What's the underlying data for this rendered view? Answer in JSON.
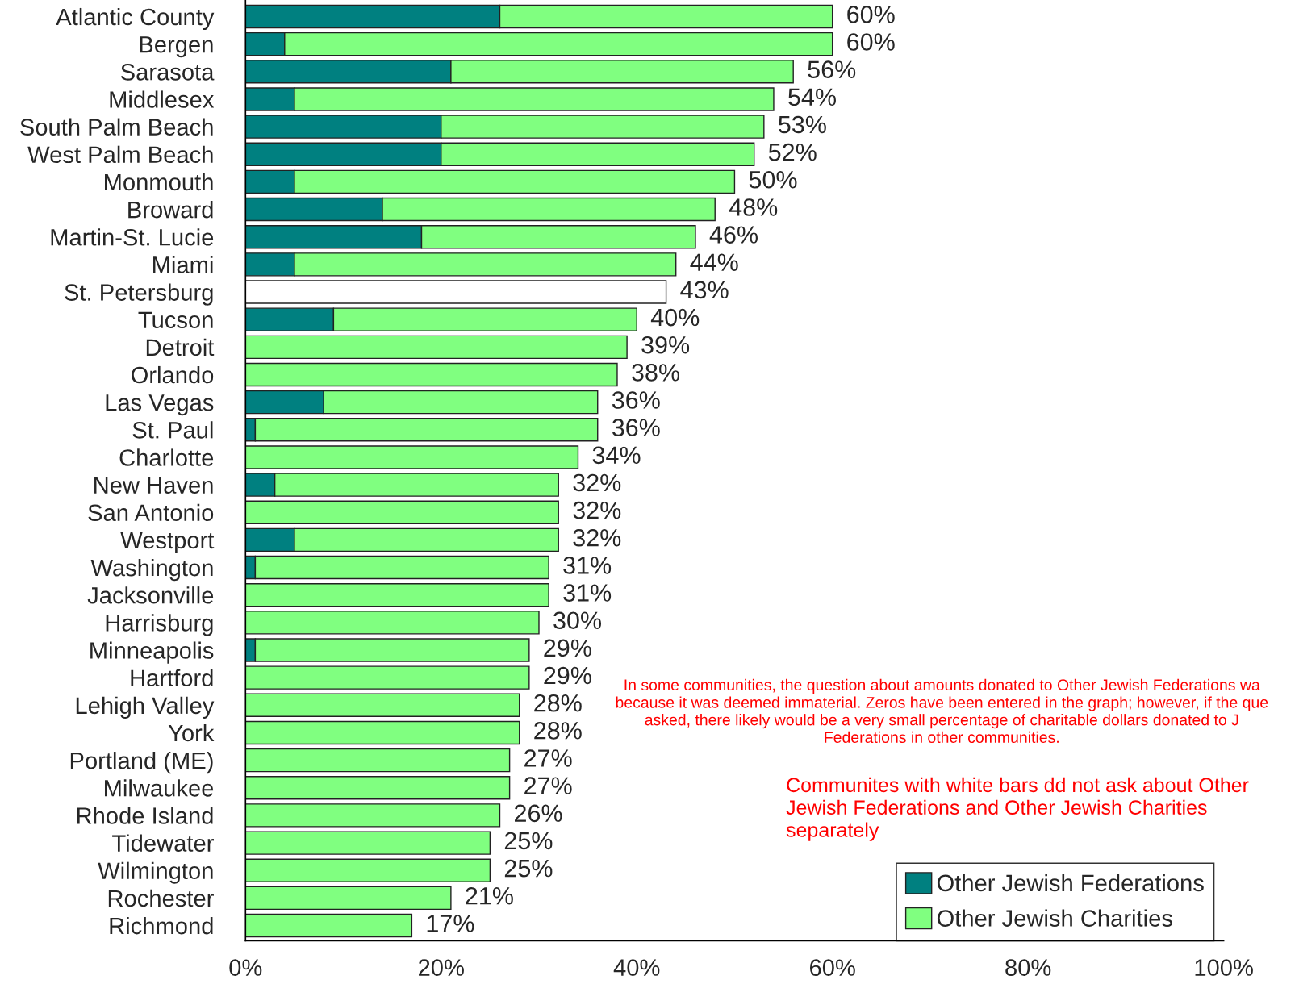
{
  "chart_data": {
    "type": "bar",
    "orientation": "horizontal",
    "stacked": true,
    "categories": [
      "Atlantic County",
      "Bergen",
      "Sarasota",
      "Middlesex",
      "South Palm Beach",
      "West Palm Beach",
      "Monmouth",
      "Broward",
      "Martin-St. Lucie",
      "Miami",
      "St. Petersburg",
      "Tucson",
      "Detroit",
      "Orlando",
      "Las Vegas",
      "St. Paul",
      "Charlotte",
      "New Haven",
      "San Antonio",
      "Westport",
      "Washington",
      "Jacksonville",
      "Harrisburg",
      "Minneapolis",
      "Hartford",
      "Lehigh Valley",
      "York",
      "Portland (ME)",
      "Milwaukee",
      "Rhode Island",
      "Tidewater",
      "Wilmington",
      "Rochester",
      "Richmond"
    ],
    "series": [
      {
        "name": "Other Jewish Federations",
        "color": "#008080",
        "values": [
          26,
          4,
          21,
          5,
          20,
          20,
          5,
          14,
          18,
          5,
          null,
          9,
          0,
          0,
          8,
          1,
          0,
          3,
          0,
          5,
          1,
          0,
          0,
          1,
          0,
          0,
          0,
          0,
          0,
          0,
          0,
          0,
          0,
          0
        ]
      },
      {
        "name": "Other Jewish Charities",
        "color": "#80ff80",
        "values": [
          34,
          56,
          35,
          49,
          33,
          32,
          45,
          34,
          28,
          39,
          null,
          31,
          39,
          38,
          28,
          35,
          34,
          29,
          32,
          27,
          30,
          31,
          30,
          28,
          29,
          28,
          28,
          27,
          27,
          26,
          25,
          25,
          21,
          17
        ]
      },
      {
        "color": "#ffffff",
        "values": [
          null,
          null,
          null,
          null,
          null,
          null,
          null,
          null,
          null,
          null,
          43,
          null,
          null,
          null,
          null,
          null,
          null,
          null,
          null,
          null,
          null,
          null,
          null,
          null,
          null,
          null,
          null,
          null,
          null,
          null,
          null,
          null,
          null,
          null
        ]
      }
    ],
    "totals": [
      "60%",
      "60%",
      "56%",
      "54%",
      "53%",
      "52%",
      "50%",
      "48%",
      "46%",
      "44%",
      "43%",
      "40%",
      "39%",
      "38%",
      "36%",
      "36%",
      "34%",
      "32%",
      "32%",
      "32%",
      "31%",
      "31%",
      "30%",
      "29%",
      "29%",
      "28%",
      "28%",
      "27%",
      "27%",
      "26%",
      "25%",
      "25%",
      "21%",
      "17%"
    ],
    "xlim": [
      0,
      100
    ],
    "xticks": [
      {
        "value": 0,
        "label": "0%"
      },
      {
        "value": 20,
        "label": "20%"
      },
      {
        "value": 40,
        "label": "40%"
      },
      {
        "value": 60,
        "label": "60%"
      },
      {
        "value": 80,
        "label": "80%"
      },
      {
        "value": 100,
        "label": "100%"
      }
    ],
    "grid": false,
    "legend": "bottom right",
    "annotations": [
      "In some communities, the question about amounts donated to Other Jewish Federations wa\nbecause it was deemed immaterial. Zeros have been entered in the graph; however, if the que\nasked, there likely would be a very small percentage of charitable dollars donated to J\nFederations in other communities.",
      "Communites with white bars dd not ask about Other\nJewish Federations and Other Jewish Charities\nseparately"
    ]
  }
}
